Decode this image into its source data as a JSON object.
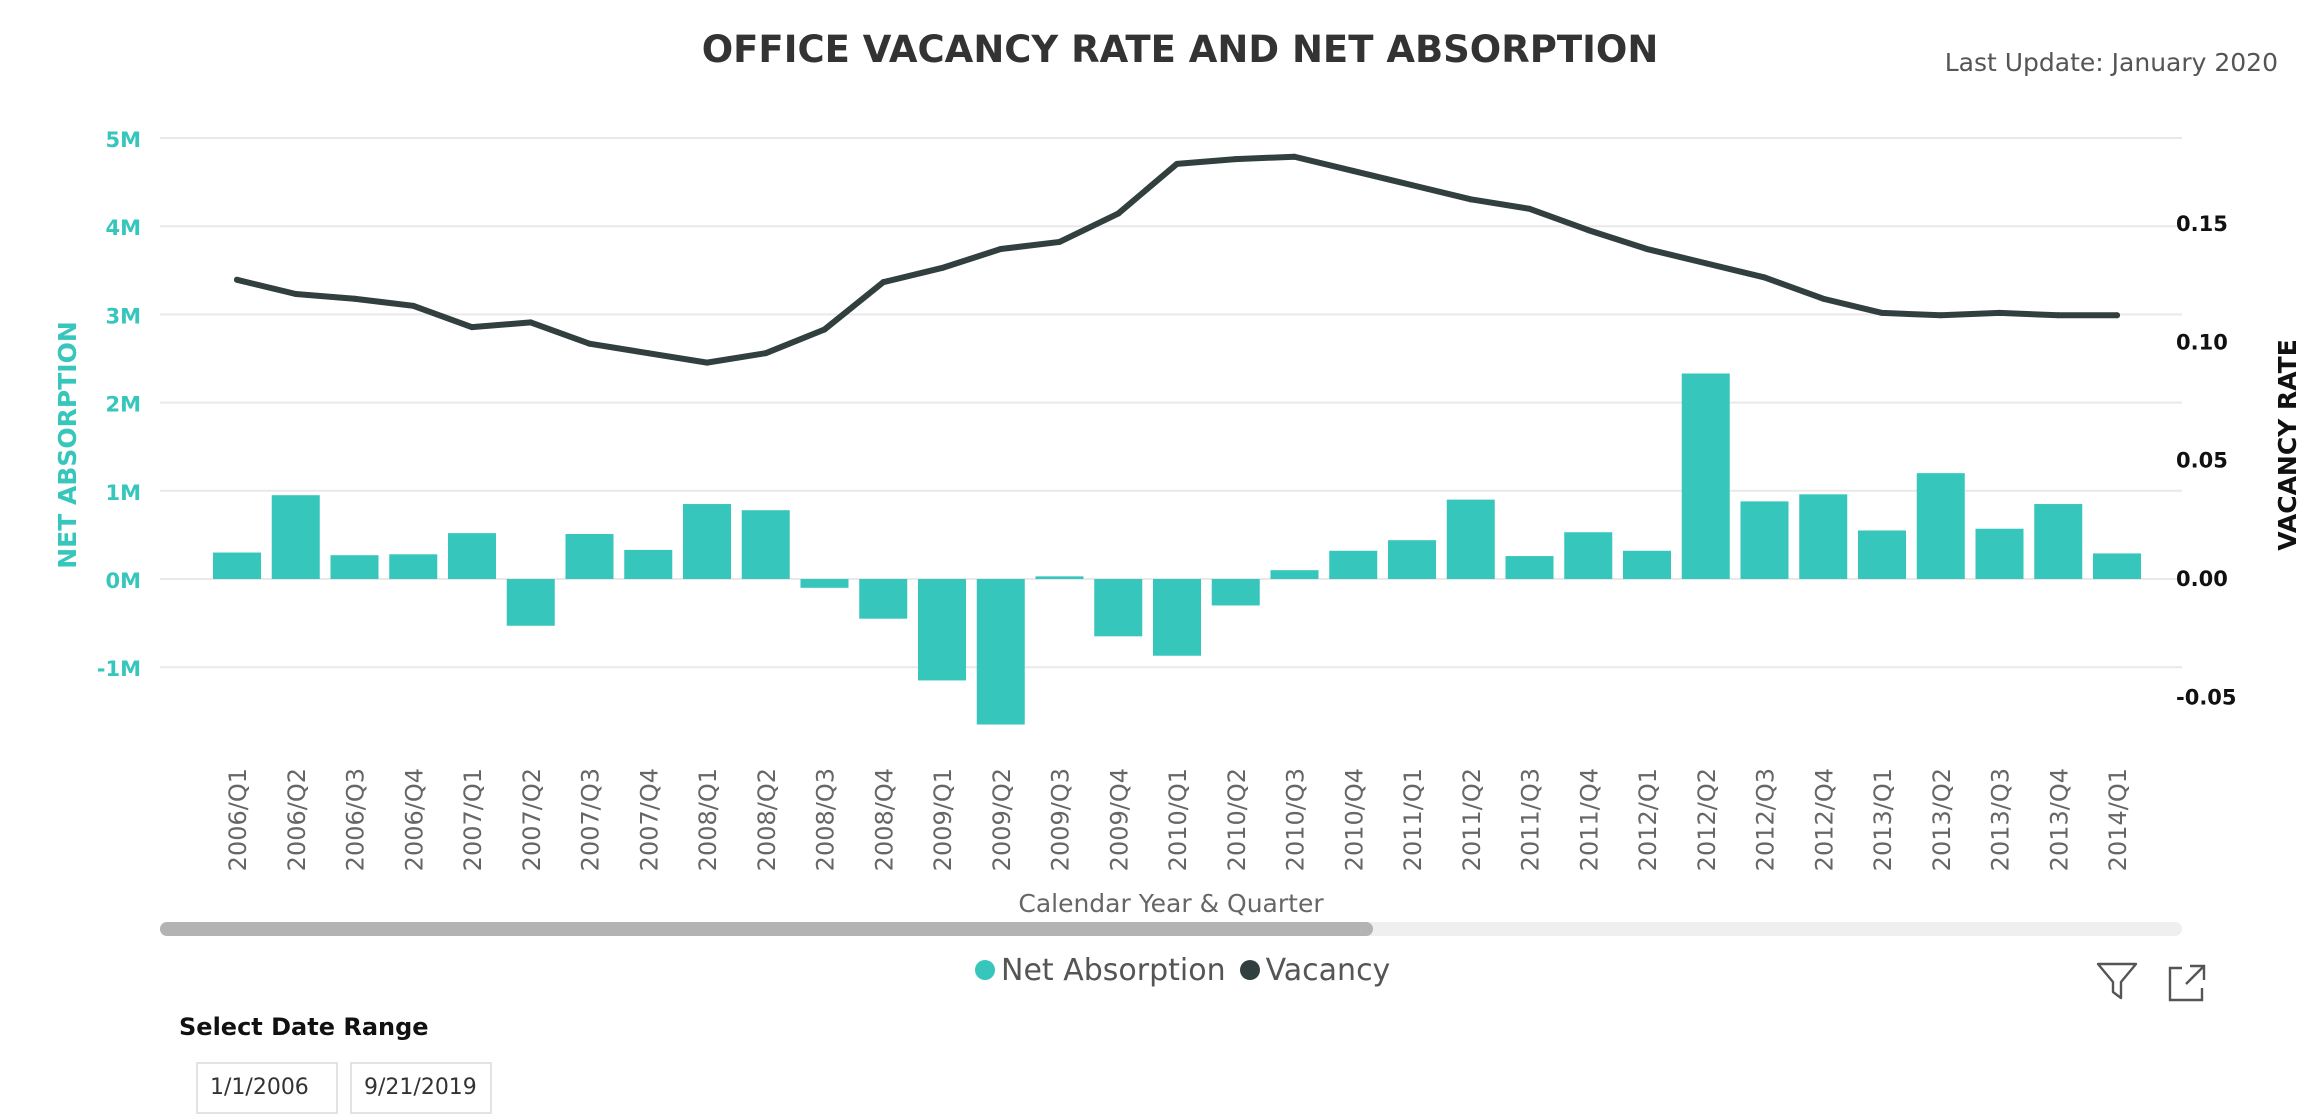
{
  "header": {
    "title": "OFFICE VACANCY RATE AND NET ABSORPTION",
    "last_update": "Last Update: January 2020"
  },
  "colors": {
    "net_absorption": "#37c6bb",
    "vacancy": "#323f3f",
    "left_axis_text": "#37c6bb",
    "right_axis_text": "#111111",
    "grid": "#e9e9e9"
  },
  "chart_data": {
    "type": "bar",
    "combo": "bar-line",
    "title": "OFFICE VACANCY RATE AND NET ABSORPTION",
    "xlabel": "Calendar Year & Quarter",
    "ylabel": "NET ABSORPTION",
    "y2label": "VACANCY RATE",
    "categories": [
      "2006/Q1",
      "2006/Q2",
      "2006/Q3",
      "2006/Q4",
      "2007/Q1",
      "2007/Q2",
      "2007/Q3",
      "2007/Q4",
      "2008/Q1",
      "2008/Q2",
      "2008/Q3",
      "2008/Q4",
      "2009/Q1",
      "2009/Q2",
      "2009/Q3",
      "2009/Q4",
      "2010/Q1",
      "2010/Q2",
      "2010/Q3",
      "2010/Q4",
      "2011/Q1",
      "2011/Q2",
      "2011/Q3",
      "2011/Q4",
      "2012/Q1",
      "2012/Q2",
      "2012/Q3",
      "2012/Q4",
      "2013/Q1",
      "2013/Q2",
      "2013/Q3",
      "2013/Q4",
      "2014/Q1"
    ],
    "series": [
      {
        "name": "Net Absorption",
        "type": "bar",
        "axis": "left",
        "values": [
          300000,
          950000,
          270000,
          280000,
          520000,
          -530000,
          510000,
          330000,
          850000,
          780000,
          -100000,
          -450000,
          -1150000,
          -1650000,
          30000,
          -650000,
          -870000,
          -300000,
          100000,
          320000,
          440000,
          900000,
          260000,
          530000,
          320000,
          2330000,
          880000,
          960000,
          550000,
          1200000,
          570000,
          850000,
          290000
        ]
      },
      {
        "name": "Vacancy",
        "type": "line",
        "axis": "right",
        "values": [
          0.126,
          0.12,
          0.118,
          0.115,
          0.106,
          0.108,
          0.099,
          0.095,
          0.091,
          0.095,
          0.105,
          0.125,
          0.131,
          0.139,
          0.142,
          0.154,
          0.175,
          0.177,
          0.178,
          0.172,
          0.166,
          0.16,
          0.156,
          0.147,
          0.139,
          0.133,
          0.127,
          0.118,
          0.112,
          0.111,
          0.112,
          0.111,
          0.111
        ]
      }
    ],
    "ylim": [
      -1700000,
      5000000
    ],
    "yticks": [
      "5M",
      "4M",
      "3M",
      "2M",
      "1M",
      "0M",
      "-1M"
    ],
    "ytick_values": [
      5000000,
      4000000,
      3000000,
      2000000,
      1000000,
      0,
      -1000000
    ],
    "y2lim": [
      -0.06,
      0.18
    ],
    "y2ticks": [
      "0.15",
      "0.10",
      "0.05",
      "0.00",
      "-0.05"
    ],
    "y2tick_values": [
      0.15,
      0.1,
      0.05,
      0.0,
      -0.05
    ],
    "grid": true,
    "legend_position": "bottom-center"
  },
  "legend": [
    {
      "label": "Net Absorption",
      "color": "#37c6bb"
    },
    {
      "label": "Vacancy",
      "color": "#323f3f"
    }
  ],
  "toolbar": {
    "filter_icon": "filter-icon",
    "focus_icon": "focus-mode-icon"
  },
  "scrollbar": {
    "visible_fraction": 0.6
  },
  "date_range": {
    "title": "Select Date Range",
    "start": "1/1/2006",
    "end": "9/21/2019"
  }
}
